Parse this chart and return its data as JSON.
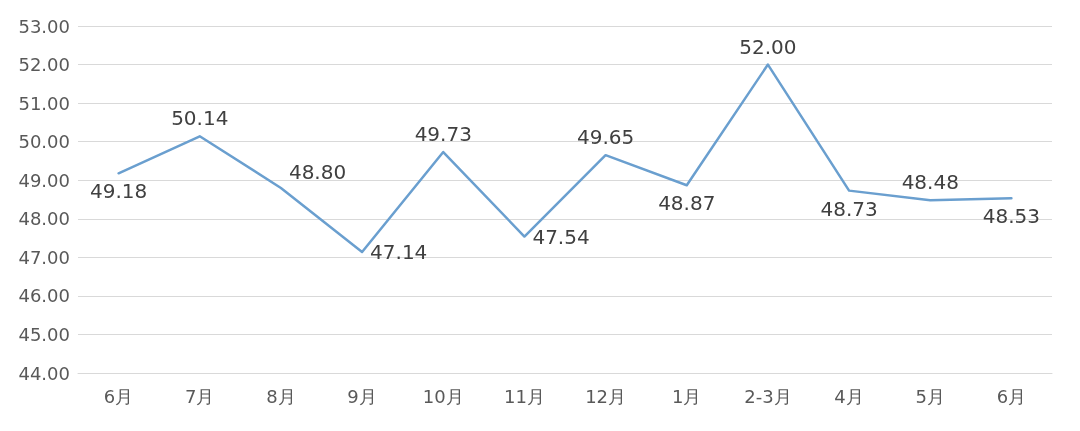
{
  "chart_data": {
    "type": "line",
    "categories": [
      "6月",
      "7月",
      "8月",
      "9月",
      "10月",
      "11月",
      "12月",
      "1月",
      "2-3月",
      "4月",
      "5月",
      "6月"
    ],
    "series": [
      {
        "color": "#6a9fcf",
        "values": [
          49.18,
          50.14,
          48.8,
          47.14,
          49.73,
          47.54,
          49.65,
          48.87,
          52.0,
          48.73,
          48.48,
          48.53
        ],
        "value_labels": [
          "49.18",
          "50.14",
          "48.80",
          "47.14",
          "49.73",
          "47.54",
          "49.65",
          "48.87",
          "52.00",
          "48.73",
          "48.48",
          "48.53"
        ]
      }
    ],
    "ylim": [
      44,
      53
    ],
    "yticks": [
      {
        "value": 44,
        "label": "44.00"
      },
      {
        "value": 45,
        "label": "45.00"
      },
      {
        "value": 46,
        "label": "46.00"
      },
      {
        "value": 47,
        "label": "47.00"
      },
      {
        "value": 48,
        "label": "48.00"
      },
      {
        "value": 49,
        "label": "49.00"
      },
      {
        "value": 50,
        "label": "50.00"
      },
      {
        "value": 51,
        "label": "51.00"
      },
      {
        "value": 52,
        "label": "52.00"
      },
      {
        "value": 53,
        "label": "53.00"
      }
    ],
    "grid": "y",
    "marker": "none",
    "line_style": "solid"
  }
}
